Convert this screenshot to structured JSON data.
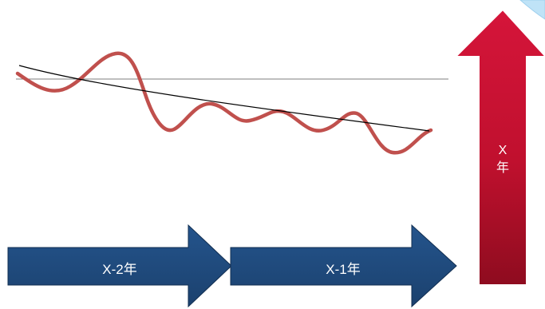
{
  "arrows": {
    "year_x_minus_2": "X-2年",
    "year_x_minus_1": "X-1年",
    "year_x_line1": "X",
    "year_x_line2": "年"
  },
  "colors": {
    "blue_arrow": "#1f4a7d",
    "red_arrow": "#c0102e",
    "wave_line": "#c0504d",
    "trend_line": "#000000",
    "baseline": "#7f7f7f",
    "corner_accent": "#bfe3f7"
  }
}
